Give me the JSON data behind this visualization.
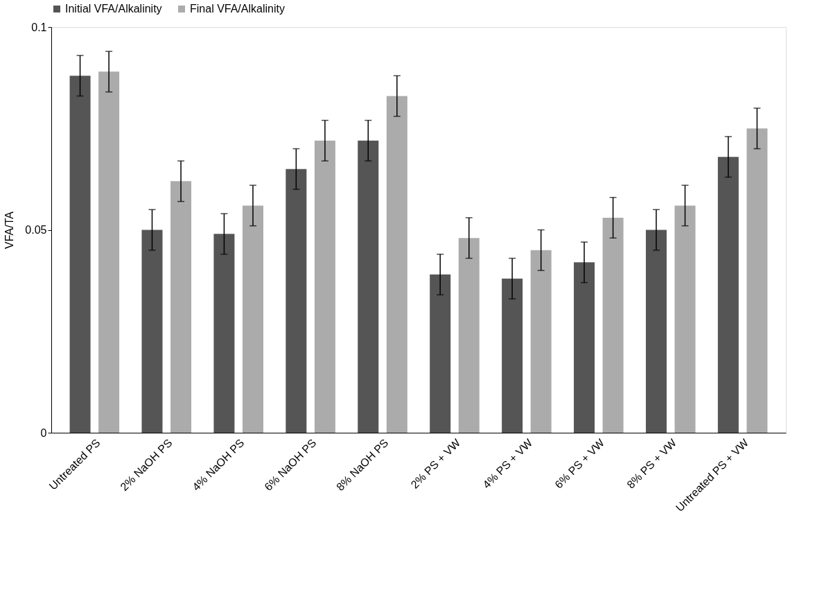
{
  "chart_data": {
    "type": "bar",
    "ylabel": "VFA/TA",
    "categories": [
      "Untreated PS",
      "2% NaOH PS",
      "4% NaOH PS",
      "6% NaOH PS",
      "8% NaOH PS",
      "2% PS + VW",
      "4% PS + VW",
      "6% PS + VW",
      "8% PS + VW",
      "Untreated PS + VW"
    ],
    "series": [
      {
        "name": "Initial VFA/Alkalinity",
        "color": "#555555",
        "values": [
          0.088,
          0.05,
          0.049,
          0.065,
          0.072,
          0.039,
          0.038,
          0.042,
          0.05,
          0.068
        ],
        "errors": [
          0.005,
          0.005,
          0.005,
          0.005,
          0.005,
          0.005,
          0.005,
          0.005,
          0.005,
          0.005
        ]
      },
      {
        "name": "Final VFA/Alkalinity",
        "color": "#ababab",
        "values": [
          0.089,
          0.062,
          0.056,
          0.072,
          0.083,
          0.048,
          0.045,
          0.053,
          0.056,
          0.075
        ],
        "errors": [
          0.005,
          0.005,
          0.005,
          0.005,
          0.005,
          0.005,
          0.005,
          0.005,
          0.005,
          0.005
        ]
      }
    ],
    "ylim": [
      0,
      0.1
    ],
    "yticks": [
      0,
      0.05,
      0.1
    ],
    "grid": false,
    "legend": "top"
  }
}
